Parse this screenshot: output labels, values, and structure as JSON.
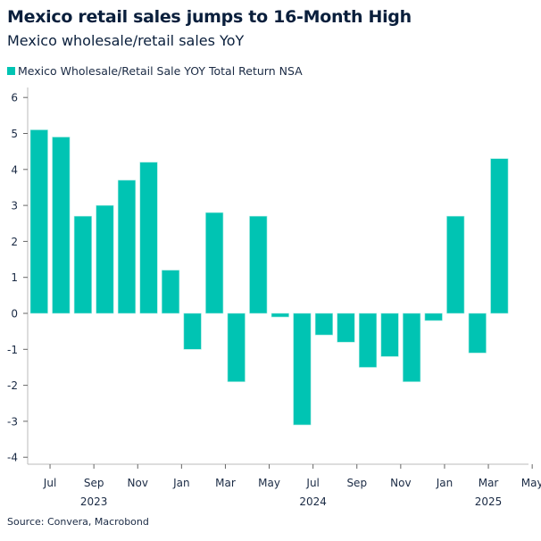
{
  "chart_data": {
    "type": "bar",
    "title": "Mexico retail sales jumps to 16-Month High",
    "subtitle": "Mexico wholesale/retail sales YoY",
    "source": "Source: Convera, Macrobond",
    "series": [
      {
        "name": "Mexico Wholesale/Retail Sale YOY Total Return NSA",
        "color": "#00c4b3",
        "categories": [
          "2023-06",
          "2023-07",
          "2023-08",
          "2023-09",
          "2023-10",
          "2023-11",
          "2023-12",
          "2024-01",
          "2024-02",
          "2024-03",
          "2024-04",
          "2024-05",
          "2024-06",
          "2024-07",
          "2024-08",
          "2024-09",
          "2024-10",
          "2024-11",
          "2024-12",
          "2025-01",
          "2025-02",
          "2025-03"
        ],
        "values": [
          5.1,
          4.9,
          2.7,
          3.0,
          3.7,
          4.2,
          1.2,
          -1.0,
          2.8,
          -1.9,
          2.7,
          -0.1,
          -3.1,
          -0.6,
          -0.8,
          -1.5,
          -1.2,
          -1.9,
          -0.2,
          2.7,
          -1.1,
          4.3
        ]
      }
    ],
    "ylim": [
      -4.2,
      6.2
    ],
    "yticks": [
      "6",
      "5",
      "4",
      "3",
      "2",
      "1",
      "0",
      "-1",
      "-2",
      "-3",
      "-4"
    ],
    "xticks": [
      {
        "label": "Jul",
        "month": "2023-07"
      },
      {
        "label": "Sep",
        "month": "2023-09"
      },
      {
        "label": "Nov",
        "month": "2023-11"
      },
      {
        "label": "Jan",
        "month": "2024-01"
      },
      {
        "label": "Mar",
        "month": "2024-03"
      },
      {
        "label": "May",
        "month": "2024-05"
      },
      {
        "label": "Jul",
        "month": "2024-07"
      },
      {
        "label": "Sep",
        "month": "2024-09"
      },
      {
        "label": "Nov",
        "month": "2024-11"
      },
      {
        "label": "Jan",
        "month": "2025-01"
      },
      {
        "label": "Mar",
        "month": "2025-03"
      },
      {
        "label": "May",
        "month": "2025-05"
      }
    ],
    "years": [
      {
        "label": "2023",
        "month": "2023-09"
      },
      {
        "label": "2024",
        "month": "2024-07"
      },
      {
        "label": "2025",
        "month": "2025-03"
      }
    ],
    "legend_position": "top-left",
    "grid": false
  }
}
